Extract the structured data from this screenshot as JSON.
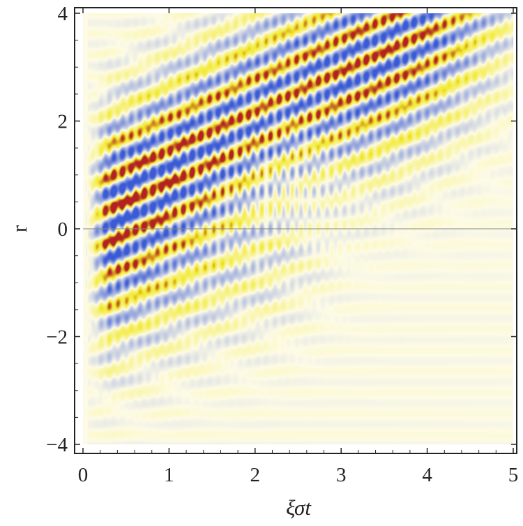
{
  "chart_data": {
    "type": "heatmap",
    "xlabel": "ξσt",
    "ylabel": "r",
    "xlim": [
      0,
      5
    ],
    "ylim": [
      -4,
      4
    ],
    "x_ticks": [
      "0",
      "1",
      "2",
      "3",
      "4",
      "5"
    ],
    "x_tick_values": [
      0,
      1,
      2,
      3,
      4,
      5
    ],
    "y_ticks": [
      "−4",
      "−2",
      "0",
      "2",
      "4"
    ],
    "y_tick_values": [
      -4,
      -2,
      0,
      2,
      4
    ],
    "reference_line": {
      "y": 0
    },
    "grid": false,
    "colormap": [
      "#3b5bd6",
      "#fdfbe6",
      "#f2ea2e",
      "#b22222"
    ],
    "background": "#fdfbe6",
    "features": [
      {
        "description": "main oscillating wave packet",
        "center_line": [
          [
            0.15,
            0.4
          ],
          [
            4.3,
            4.0
          ]
        ],
        "amplitude_peak": 1.0
      },
      {
        "description": "weaker lower branch",
        "center_line": [
          [
            0.2,
            -1.2
          ],
          [
            2.6,
            0.6
          ]
        ],
        "amplitude_peak": 0.45
      }
    ]
  }
}
